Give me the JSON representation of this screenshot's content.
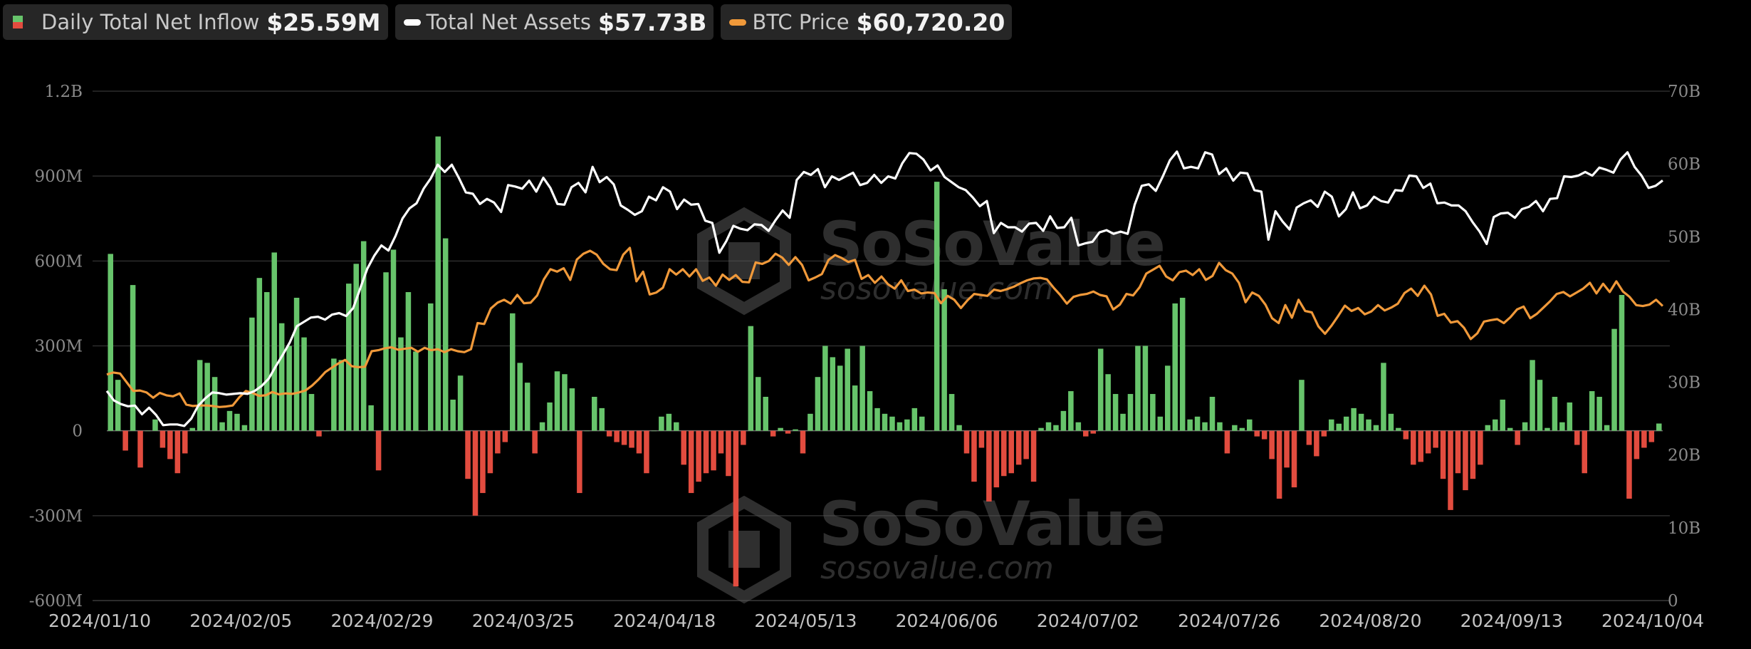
{
  "legend": [
    {
      "label": "Daily Total Net Inflow",
      "value": "$25.59M",
      "kind": "bar",
      "colors": [
        "#67c46b",
        "#e24c3f"
      ]
    },
    {
      "label": "Total Net Assets",
      "value": "$57.73B",
      "kind": "line",
      "color": "#ffffff"
    },
    {
      "label": "BTC Price",
      "value": "$60,720.20",
      "kind": "line",
      "color": "#f0993a"
    }
  ],
  "watermark": {
    "brand": "SoSoValue",
    "site": "sosovalue.com"
  },
  "chart_data": {
    "type": "bar",
    "x_ticks": [
      "2024/01/10",
      "2024/02/05",
      "2024/02/29",
      "2024/03/25",
      "2024/04/18",
      "2024/05/13",
      "2024/06/06",
      "2024/07/02",
      "2024/07/26",
      "2024/08/20",
      "2024/09/13",
      "2024/10/04"
    ],
    "y_left_ticks": [
      "1.2B",
      "900M",
      "600M",
      "300M",
      "0",
      "-300M",
      "-600M"
    ],
    "y_left_range": [
      -600,
      1200
    ],
    "y_left_unit": "M",
    "y_right_ticks": [
      "70B",
      "60B",
      "50B",
      "40B",
      "30B",
      "20B",
      "10B",
      "0"
    ],
    "y_right_range": [
      0,
      70
    ],
    "y_right_unit": "B",
    "grid": true,
    "colors": {
      "positive": "#67c46b",
      "negative": "#e24c3f",
      "assets": "#ffffff",
      "price": "#f0993a"
    },
    "series": [
      {
        "name": "Daily Total Net Inflow",
        "unit": "M",
        "values": [
          625,
          180,
          -70,
          515,
          -130,
          0,
          40,
          -60,
          -100,
          -150,
          -80,
          10,
          250,
          240,
          190,
          30,
          70,
          60,
          20,
          400,
          540,
          490,
          630,
          380,
          300,
          470,
          330,
          130,
          -20,
          0,
          255,
          250,
          520,
          590,
          670,
          90,
          -140,
          560,
          640,
          330,
          490,
          280,
          0,
          450,
          1040,
          680,
          110,
          195,
          -170,
          -300,
          -220,
          -150,
          -80,
          -40,
          415,
          240,
          170,
          -80,
          30,
          100,
          210,
          200,
          150,
          -220,
          0,
          120,
          80,
          -20,
          -40,
          -50,
          -60,
          -80,
          -150,
          0,
          50,
          60,
          30,
          -120,
          -220,
          -180,
          -150,
          -140,
          -80,
          -160,
          -550,
          -50,
          370,
          190,
          120,
          -20,
          10,
          -10,
          5,
          -80,
          60,
          190,
          300,
          260,
          230,
          290,
          160,
          300,
          140,
          80,
          60,
          50,
          30,
          40,
          80,
          50,
          0,
          880,
          500,
          130,
          20,
          -80,
          -180,
          -60,
          -250,
          -200,
          -160,
          -150,
          -120,
          -100,
          -180,
          10,
          30,
          20,
          70,
          140,
          30,
          -20,
          -10,
          290,
          200,
          130,
          60,
          130,
          300,
          300,
          130,
          50,
          230,
          450,
          470,
          40,
          50,
          30,
          120,
          30,
          -80,
          20,
          10,
          40,
          -20,
          -30,
          -100,
          -240,
          -130,
          -200,
          180,
          -50,
          -90,
          -20,
          40,
          25,
          50,
          80,
          60,
          40,
          20,
          240,
          60,
          10,
          -30,
          -120,
          -110,
          -80,
          -60,
          -170,
          -280,
          -150,
          -210,
          -170,
          -120,
          20,
          40,
          110,
          10,
          -50,
          30,
          250,
          180,
          10,
          120,
          30,
          100,
          -50,
          -150,
          140,
          120,
          20,
          360,
          480,
          -240,
          -100,
          -60,
          -40,
          25.59
        ]
      },
      {
        "name": "Total Net Assets",
        "unit": "B",
        "values": [
          28.8,
          27.5,
          27.0,
          26.7,
          26.8,
          25.6,
          26.5,
          25.5,
          24.1,
          24.2,
          24.2,
          24.0,
          25.0,
          26.8,
          27.8,
          28.6,
          28.5,
          28.3,
          28.4,
          28.5,
          28.4,
          28.8,
          29.5,
          30.5,
          32.2,
          33.8,
          35.5,
          37.7,
          38.3,
          38.9,
          39.0,
          38.6,
          39.3,
          39.5,
          39.1,
          40.2,
          42.9,
          45.6,
          47.4,
          48.8,
          48.1,
          50.1,
          52.5,
          53.9,
          54.6,
          56.6,
          58.0,
          59.9,
          58.9,
          59.9,
          58.1,
          56.1,
          55.9,
          54.5,
          55.2,
          54.7,
          53.4,
          57.1,
          56.9,
          56.6,
          57.7,
          56.2,
          58.1,
          56.7,
          54.5,
          54.4,
          56.8,
          57.4,
          56.1,
          59.6,
          57.5,
          58.2,
          57.2,
          54.3,
          53.7,
          53.0,
          53.5,
          55.5,
          55.0,
          56.8,
          56.2,
          53.8,
          55.1,
          54.4,
          54.5,
          52.2,
          51.9,
          47.8,
          49.4,
          51.5,
          51.1,
          50.9,
          51.7,
          51.6,
          50.8,
          52.3,
          53.6,
          52.6,
          57.8,
          58.9,
          58.5,
          59.3,
          56.8,
          58.3,
          57.8,
          58.3,
          58.8,
          57.1,
          57.4,
          58.5,
          57.4,
          58.3,
          58.0,
          60.1,
          61.5,
          61.4,
          60.6,
          59.1,
          59.8,
          58.2,
          57.5,
          56.8,
          56.4,
          55.4,
          54.2,
          54.9,
          50.5,
          51.9,
          51.3,
          51.3,
          50.7,
          51.8,
          51.9,
          50.8,
          52.8,
          51.2,
          51.3,
          52.6,
          48.8,
          49.1,
          49.3,
          50.6,
          50.9,
          50.4,
          50.7,
          50.4,
          54.4,
          57.0,
          57.2,
          56.3,
          58.3,
          60.5,
          61.7,
          59.4,
          59.6,
          59.4,
          61.6,
          61.3,
          58.6,
          59.4,
          57.7,
          58.8,
          58.7,
          56.4,
          56.2,
          49.6,
          53.5,
          52.1,
          51.0,
          54.0,
          54.6,
          55.0,
          54.1,
          56.2,
          55.5,
          52.8,
          53.8,
          56.1,
          53.9,
          54.3,
          55.5,
          54.9,
          54.7,
          56.4,
          56.3,
          58.4,
          58.3,
          56.7,
          57.3,
          54.6,
          54.7,
          54.3,
          54.3,
          53.5,
          52.0,
          50.7,
          49.0,
          52.7,
          53.2,
          53.3,
          52.6,
          53.8,
          54.1,
          54.9,
          53.5,
          55.2,
          55.3,
          58.3,
          58.2,
          58.4,
          58.9,
          58.4,
          59.5,
          59.2,
          58.8,
          60.6,
          61.6,
          59.6,
          58.4,
          56.7,
          57.0,
          57.73
        ]
      },
      {
        "name": "BTC Price",
        "unit": "USD",
        "values": [
          46600,
          47000,
          46800,
          45000,
          43200,
          43300,
          42900,
          41800,
          42800,
          42300,
          42100,
          42700,
          40400,
          40100,
          40200,
          40200,
          40100,
          39900,
          40000,
          40200,
          41900,
          43200,
          42800,
          42200,
          42300,
          43000,
          42500,
          42700,
          42600,
          42900,
          43300,
          44300,
          45600,
          47100,
          48000,
          48900,
          49600,
          48300,
          48100,
          48200,
          51400,
          51600,
          52000,
          52200,
          51700,
          51900,
          52100,
          51300,
          52100,
          51600,
          51800,
          51200,
          51800,
          51400,
          51200,
          51800,
          57200,
          57000,
          60200,
          61400,
          62000,
          61200,
          63000,
          61300,
          61400,
          62900,
          66200,
          68300,
          67800,
          68500,
          66100,
          70300,
          71500,
          72100,
          71300,
          69400,
          68300,
          68100,
          71300,
          72700,
          65800,
          67800,
          63100,
          63500,
          64500,
          68300,
          67200,
          68300,
          66800,
          68300,
          65900,
          66600,
          64900,
          67200,
          66100,
          67100,
          65700,
          65600,
          69700,
          69400,
          70000,
          71500,
          70700,
          69200,
          70800,
          69200,
          66000,
          66600,
          67300,
          70200,
          71200,
          70600,
          69800,
          70200,
          66300,
          67100,
          65500,
          66800,
          65200,
          64300,
          66000,
          63800,
          64100,
          63300,
          63500,
          63400,
          61300,
          62800,
          62000,
          60300,
          61900,
          63200,
          63000,
          62800,
          64100,
          63800,
          64200,
          64700,
          65400,
          66000,
          66400,
          66500,
          66200,
          64500,
          63000,
          61200,
          62600,
          63000,
          63200,
          63700,
          63000,
          62700,
          60000,
          61000,
          63200,
          62900,
          64600,
          67400,
          68200,
          69000,
          66800,
          66000,
          67700,
          68000,
          67100,
          68300,
          66100,
          66900,
          69600,
          68100,
          67400,
          65500,
          61500,
          63500,
          62800,
          61000,
          58200,
          57200,
          60900,
          58300,
          62000,
          59700,
          59400,
          56500,
          55000,
          56700,
          58700,
          60800,
          59700,
          60300,
          59000,
          59600,
          60900,
          59800,
          60400,
          61200,
          63400,
          64300,
          62800,
          64900,
          63100,
          58700,
          59100,
          57300,
          57600,
          56200,
          53900,
          55100,
          57500,
          57800,
          58000,
          57200,
          58400,
          60000,
          60600,
          58200,
          59100,
          60400,
          61700,
          63200,
          63600,
          62700,
          63500,
          64300,
          65500,
          63300,
          65300,
          63600,
          65800,
          63700,
          62600,
          60900,
          60700,
          61000,
          62000,
          60720.2
        ]
      }
    ]
  }
}
